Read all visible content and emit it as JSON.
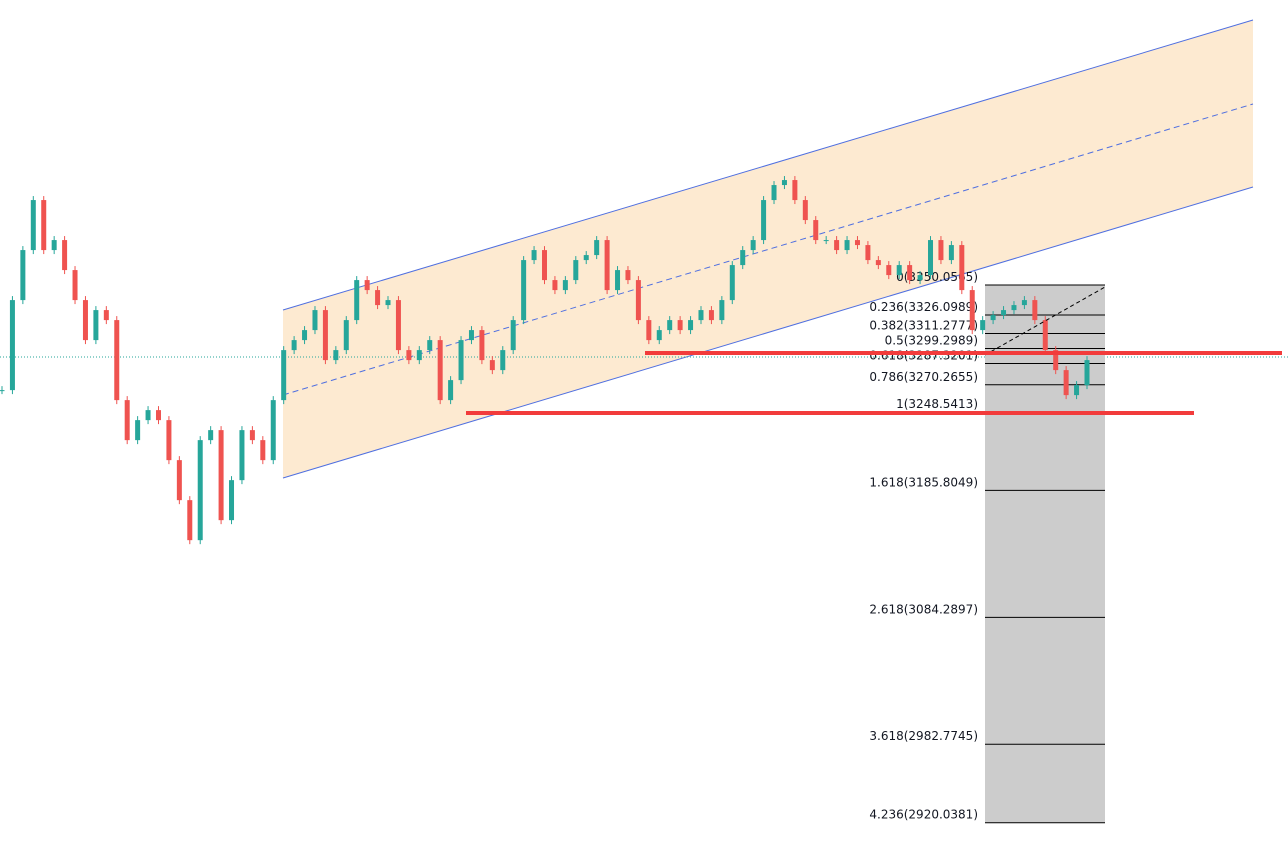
{
  "chart_data": {
    "type": "candlestick",
    "ylim": [
      2891,
      3578
    ],
    "up_color": "#26a69a",
    "down_color": "#ef5350",
    "values": [
      3266,
      3338,
      3378,
      3418,
      3378,
      3386,
      3362,
      3338,
      3306,
      3330,
      3322,
      3258,
      3226,
      3242,
      3250,
      3242,
      3210,
      3178,
      3146,
      3226,
      3234,
      3162,
      3194,
      3234,
      3226,
      3210,
      3258,
      3298,
      3306,
      3314,
      3330,
      3290,
      3298,
      3322,
      3354,
      3346,
      3334,
      3338,
      3298,
      3290,
      3298,
      3306,
      3258,
      3274,
      3306,
      3314,
      3290,
      3282,
      3298,
      3322,
      3370,
      3378,
      3354,
      3346,
      3354,
      3370,
      3374,
      3386,
      3346,
      3362,
      3354,
      3322,
      3306,
      3314,
      3322,
      3314,
      3322,
      3330,
      3322,
      3338,
      3366,
      3378,
      3386,
      3418,
      3430,
      3434,
      3418,
      3402,
      3386,
      3386,
      3378,
      3386,
      3382,
      3370,
      3366,
      3358,
      3366,
      3354,
      3358,
      3386,
      3370,
      3382,
      3346,
      3314,
      3322,
      3326,
      3330,
      3334,
      3338,
      3322,
      3298,
      3282,
      3262,
      3270,
      3290
    ],
    "fib_levels": [
      {
        "value": 3350.0565,
        "label": "0(3350.0565)"
      },
      {
        "value": 3326.0989,
        "label": "0.236(3326.0989)"
      },
      {
        "value": 3311.2777,
        "label": "0.382(3311.2777)"
      },
      {
        "value": 3299.2989,
        "label": "0.5(3299.2989)"
      },
      {
        "value": 3287.3201,
        "label": "0.618(3287.3201)"
      },
      {
        "value": 3270.2655,
        "label": "0.786(3270.2655)"
      },
      {
        "value": 3248.5413,
        "label": "1(3248.5413)"
      },
      {
        "value": 3185.8049,
        "label": "1.618(3185.8049)"
      },
      {
        "value": 3084.2897,
        "label": "2.618(3084.2897)"
      },
      {
        "value": 2982.7745,
        "label": "3.618(2982.7745)"
      },
      {
        "value": 2920.0381,
        "label": "4.236(2920.0381)"
      }
    ]
  }
}
